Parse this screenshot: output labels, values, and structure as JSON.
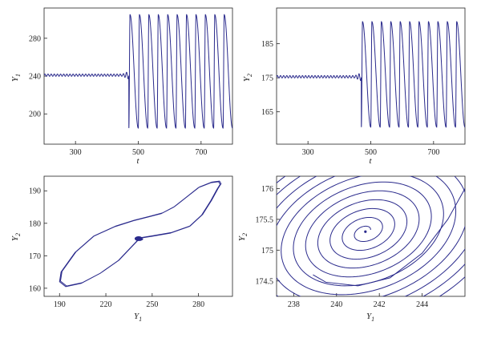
{
  "chart_data": [
    {
      "id": "ts1",
      "type": "line",
      "xlabel": "t",
      "ylabel": "Y",
      "ylabel_sub": "1",
      "xlim": [
        200,
        800
      ],
      "ylim": [
        168,
        312
      ],
      "xticks": [
        300,
        500,
        700
      ],
      "yticks": [
        200,
        240,
        280
      ],
      "description_values": {
        "equilibrium": 241,
        "small_oscillation_amplitude": 1.2,
        "small_oscillation_period": 10,
        "onset_t": 470,
        "large_oscillation_min": 185,
        "large_oscillation_max": 305,
        "large_oscillation_period": 30
      },
      "series": [
        {
          "color": "#2a2a8c"
        }
      ]
    },
    {
      "id": "ts2",
      "type": "line",
      "xlabel": "t",
      "ylabel": "Y",
      "ylabel_sub": "2",
      "xlim": [
        200,
        800
      ],
      "ylim": [
        155.5,
        195.5
      ],
      "xticks": [
        300,
        500,
        700
      ],
      "yticks": [
        165,
        175,
        185
      ],
      "description_values": {
        "equilibrium": 175.3,
        "small_oscillation_amplitude": 0.35,
        "small_oscillation_period": 10,
        "onset_t": 470,
        "large_oscillation_min": 160.5,
        "large_oscillation_max": 191.5,
        "large_oscillation_period": 30
      },
      "series": [
        {
          "color": "#2a2a8c"
        }
      ]
    },
    {
      "id": "phase1",
      "type": "line",
      "xlabel": "Y",
      "xlabel_sub": "1",
      "ylabel": "Y",
      "ylabel_sub": "2",
      "xlim": [
        180,
        302
      ],
      "ylim": [
        157.5,
        194.5
      ],
      "xticks": [
        190,
        220,
        250,
        280
      ],
      "yticks": [
        160,
        170,
        180,
        190
      ],
      "limit_cycle": [
        [
          242,
          175.4
        ],
        [
          250,
          176.0
        ],
        [
          262,
          177.0
        ],
        [
          274,
          179.0
        ],
        [
          282,
          182.5
        ],
        [
          288,
          187.0
        ],
        [
          292,
          190.5
        ],
        [
          294,
          192.0
        ],
        [
          293,
          192.8
        ],
        [
          288,
          192.5
        ],
        [
          280,
          191.0
        ],
        [
          272,
          188.0
        ],
        [
          264,
          185.0
        ],
        [
          256,
          183.0
        ],
        [
          248,
          182.0
        ],
        [
          238,
          180.8
        ],
        [
          226,
          179.0
        ],
        [
          212,
          176.0
        ],
        [
          200,
          171.0
        ],
        [
          191,
          165.0
        ],
        [
          190,
          162.0
        ],
        [
          194,
          160.5
        ],
        [
          204,
          161.5
        ],
        [
          216,
          164.5
        ],
        [
          228,
          168.5
        ],
        [
          236,
          172.5
        ],
        [
          240,
          174.5
        ],
        [
          242,
          175.4
        ]
      ],
      "equilibrium": [
        241.3,
        175.3
      ],
      "series": [
        {
          "color": "#2a2a8c"
        }
      ]
    },
    {
      "id": "phase2",
      "type": "line",
      "xlabel": "Y",
      "xlabel_sub": "1",
      "ylabel": "Y",
      "ylabel_sub": "2",
      "xlim": [
        237.2,
        246
      ],
      "ylim": [
        174.25,
        176.2
      ],
      "xticks": [
        238,
        240,
        242,
        244
      ],
      "yticks": [
        174.5,
        175,
        175.5,
        176
      ],
      "equilibrium": [
        241.35,
        175.3
      ],
      "series": [
        {
          "color": "#2a2a8c"
        }
      ]
    }
  ]
}
